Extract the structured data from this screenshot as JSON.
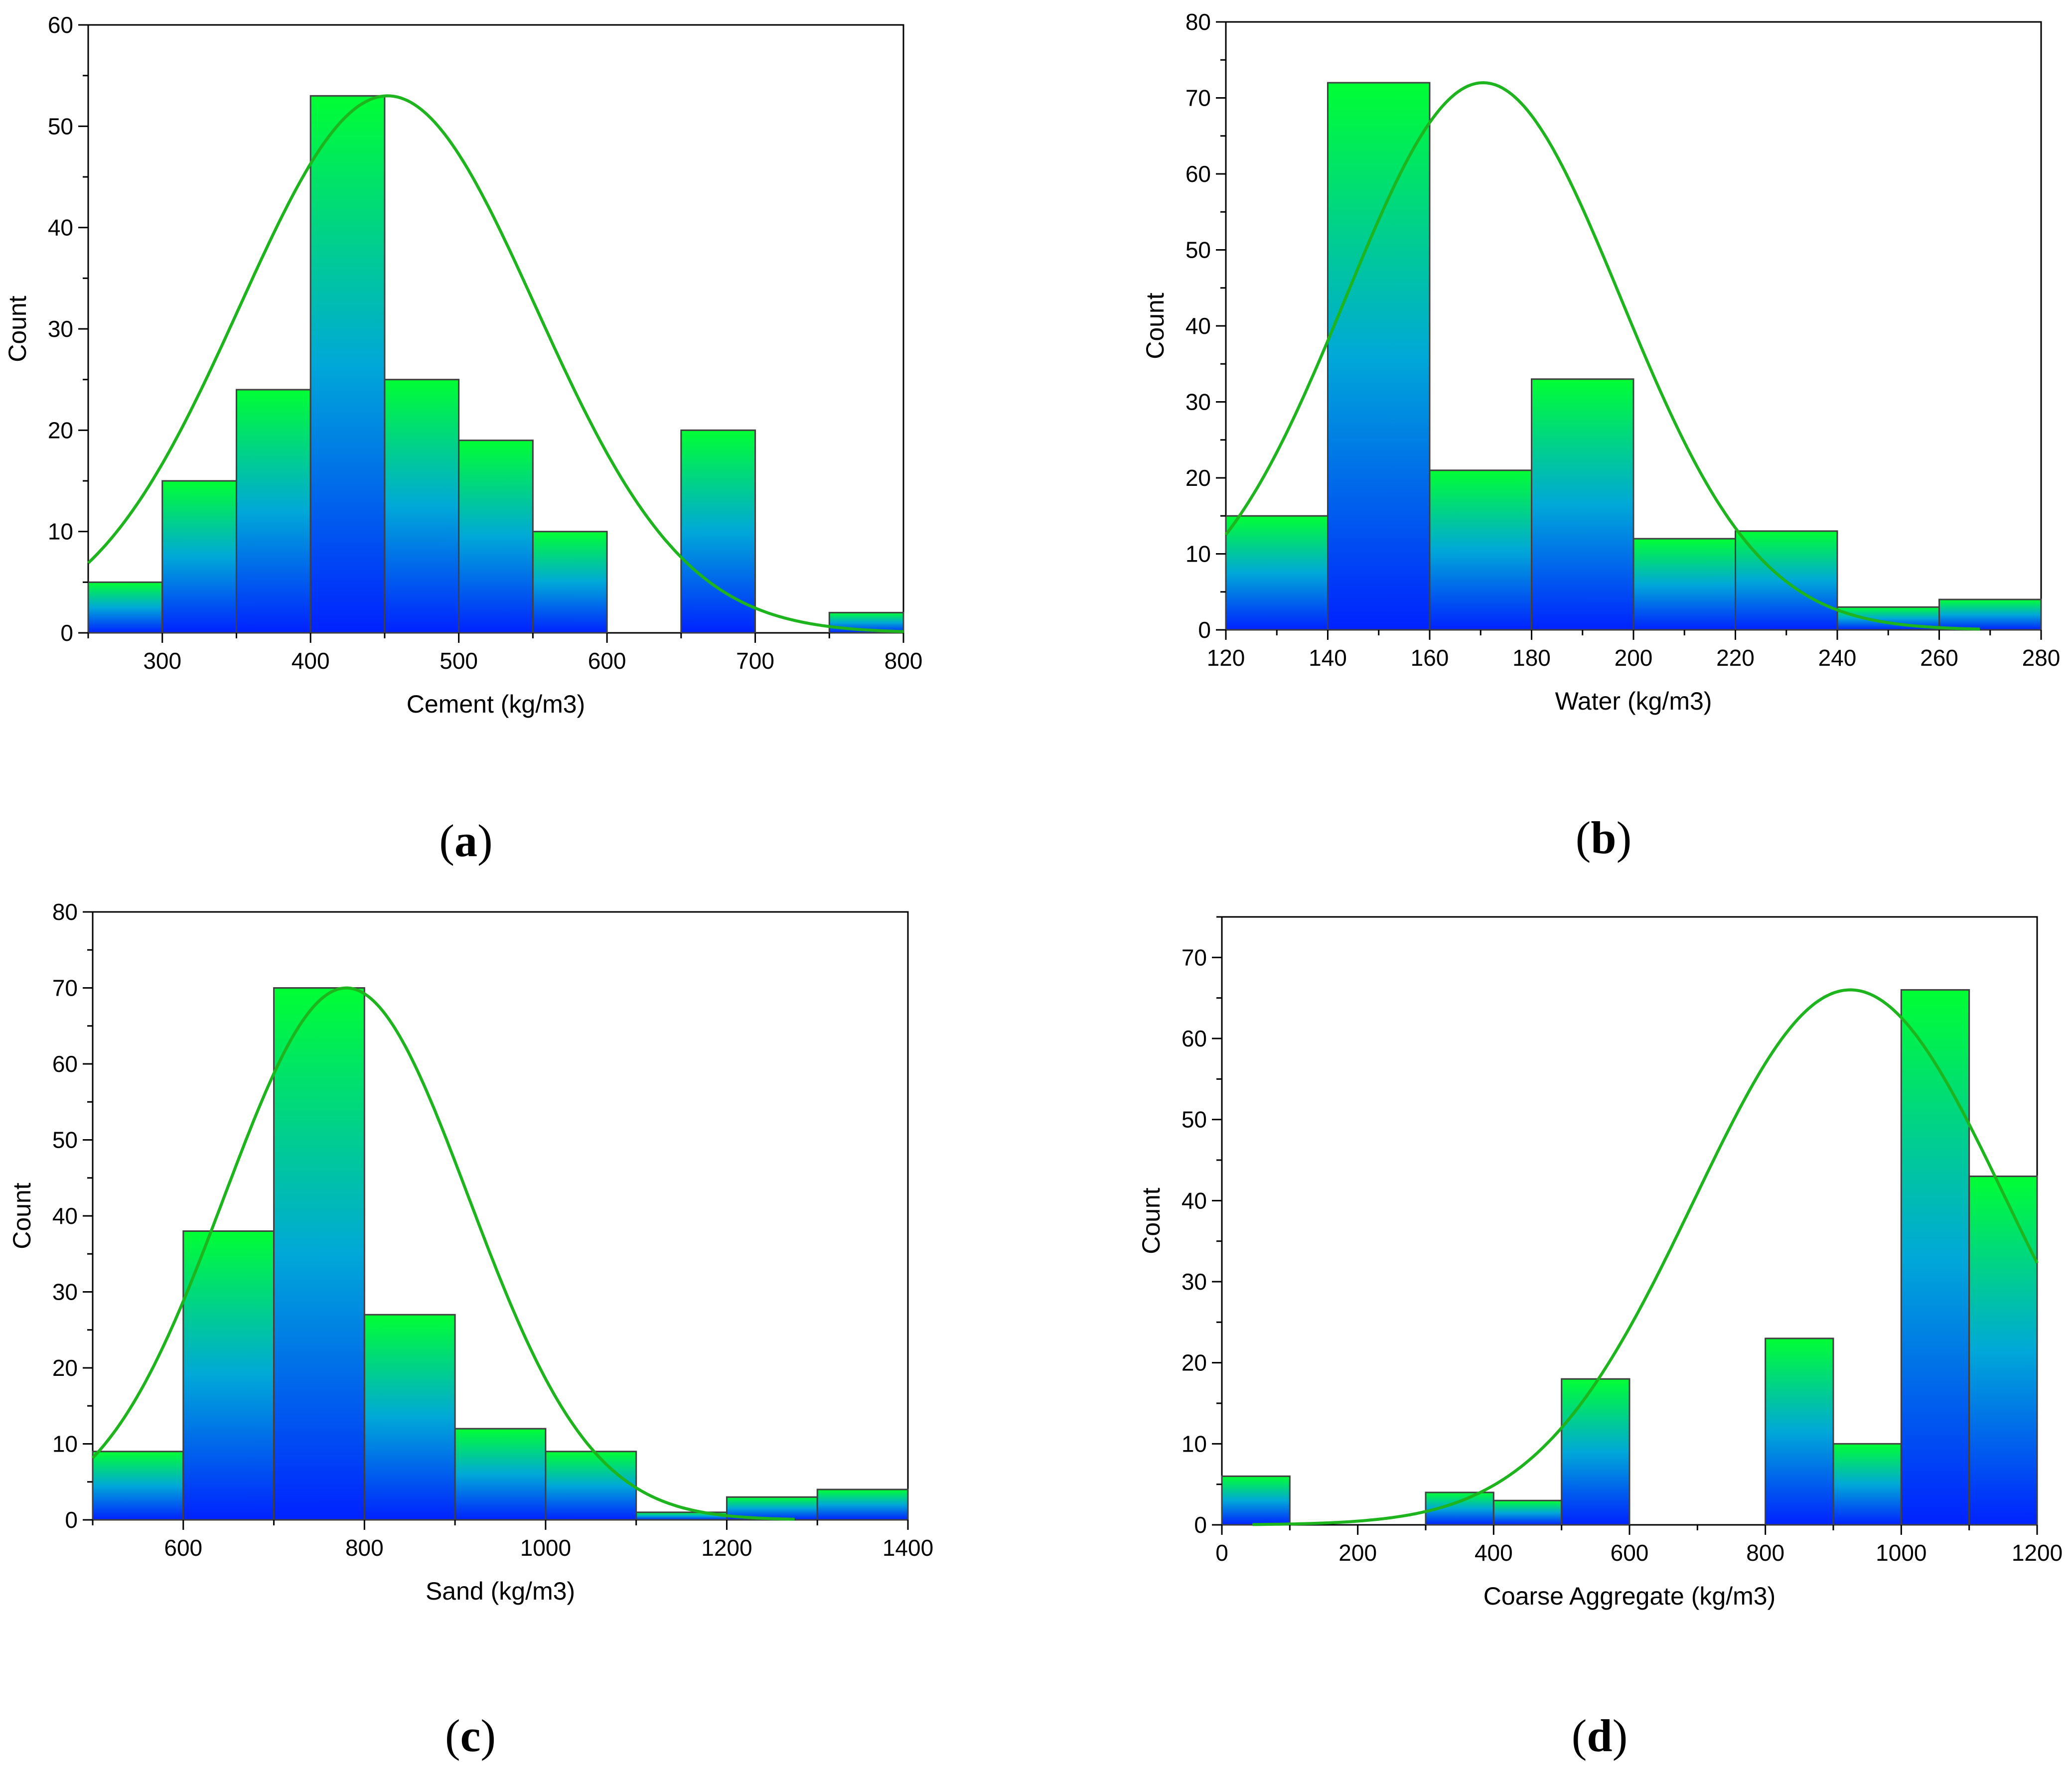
{
  "colors": {
    "bar_top": "#00ff33",
    "bar_mid": "#00a8d8",
    "bar_bottom": "#0022ff",
    "curve": "#1db41d",
    "bar_edge": "#404040"
  },
  "chart_data": [
    {
      "type": "bar",
      "panel_label": "a",
      "title": "",
      "xlabel": "Cement (kg/m3)",
      "ylabel": "Count",
      "xlim": [
        250,
        800
      ],
      "ylim": [
        0,
        60
      ],
      "xticks": [
        300,
        400,
        500,
        600,
        700,
        800
      ],
      "yticks": [
        0,
        10,
        20,
        30,
        40,
        50,
        60
      ],
      "bins": [
        [
          250,
          300
        ],
        [
          300,
          350
        ],
        [
          350,
          400
        ],
        [
          400,
          450
        ],
        [
          450,
          500
        ],
        [
          500,
          550
        ],
        [
          550,
          600
        ],
        [
          600,
          650
        ],
        [
          650,
          700
        ],
        [
          700,
          750
        ],
        [
          750,
          800
        ]
      ],
      "values": [
        5,
        15,
        24,
        53,
        25,
        19,
        10,
        0,
        20,
        0,
        2
      ],
      "curve": {
        "type": "normal",
        "mean": 452,
        "sd": 100,
        "peak": 53,
        "x_range": [
          250,
          800
        ]
      }
    },
    {
      "type": "bar",
      "panel_label": "b",
      "title": "",
      "xlabel": "Water (kg/m3)",
      "ylabel": "Count",
      "xlim": [
        120,
        280
      ],
      "ylim": [
        0,
        80
      ],
      "xticks": [
        120,
        140,
        160,
        180,
        200,
        220,
        240,
        260,
        280
      ],
      "yticks": [
        0,
        10,
        20,
        30,
        40,
        50,
        60,
        70,
        80
      ],
      "bins": [
        [
          120,
          140
        ],
        [
          140,
          160
        ],
        [
          160,
          180
        ],
        [
          180,
          200
        ],
        [
          200,
          220
        ],
        [
          220,
          240
        ],
        [
          240,
          260
        ],
        [
          260,
          280
        ]
      ],
      "values": [
        15,
        72,
        21,
        33,
        12,
        13,
        3,
        4
      ],
      "curve": {
        "type": "normal",
        "mean": 170.5,
        "sd": 27,
        "peak": 72,
        "x_range": [
          120,
          268
        ]
      }
    },
    {
      "type": "bar",
      "panel_label": "c",
      "title": "",
      "xlabel": "Sand (kg/m3)",
      "ylabel": "Count",
      "xlim": [
        500,
        1400
      ],
      "ylim": [
        0,
        80
      ],
      "xticks": [
        600,
        800,
        1000,
        1200,
        1400
      ],
      "yticks": [
        0,
        10,
        20,
        30,
        40,
        50,
        60,
        70,
        80
      ],
      "bins": [
        [
          500,
          600
        ],
        [
          600,
          700
        ],
        [
          700,
          800
        ],
        [
          800,
          900
        ],
        [
          900,
          1000
        ],
        [
          1000,
          1100
        ],
        [
          1100,
          1200
        ],
        [
          1200,
          1300
        ],
        [
          1300,
          1400
        ]
      ],
      "values": [
        9,
        38,
        70,
        27,
        12,
        9,
        1,
        3,
        4
      ],
      "curve": {
        "type": "normal",
        "mean": 780,
        "sd": 135,
        "peak": 70,
        "x_range": [
          500,
          1275
        ]
      }
    },
    {
      "type": "bar",
      "panel_label": "d",
      "title": "",
      "xlabel": "Coarse Aggregate (kg/m3)",
      "ylabel": "Count",
      "xlim": [
        0,
        1200
      ],
      "ylim": [
        0,
        75
      ],
      "xticks": [
        0,
        200,
        400,
        600,
        800,
        1000,
        1200
      ],
      "yticks": [
        0,
        10,
        20,
        30,
        40,
        50,
        60,
        70
      ],
      "bins": [
        [
          0,
          100
        ],
        [
          100,
          200
        ],
        [
          200,
          300
        ],
        [
          300,
          400
        ],
        [
          400,
          500
        ],
        [
          500,
          600
        ],
        [
          600,
          700
        ],
        [
          700,
          800
        ],
        [
          800,
          900
        ],
        [
          900,
          1000
        ],
        [
          1000,
          1100
        ],
        [
          1100,
          1200
        ]
      ],
      "values": [
        6,
        0,
        0,
        4,
        3,
        18,
        0,
        0,
        23,
        10,
        66,
        43
      ],
      "curve": {
        "type": "normal",
        "mean": 925,
        "sd": 230,
        "peak": 66,
        "x_range": [
          45,
          1200
        ]
      }
    }
  ]
}
